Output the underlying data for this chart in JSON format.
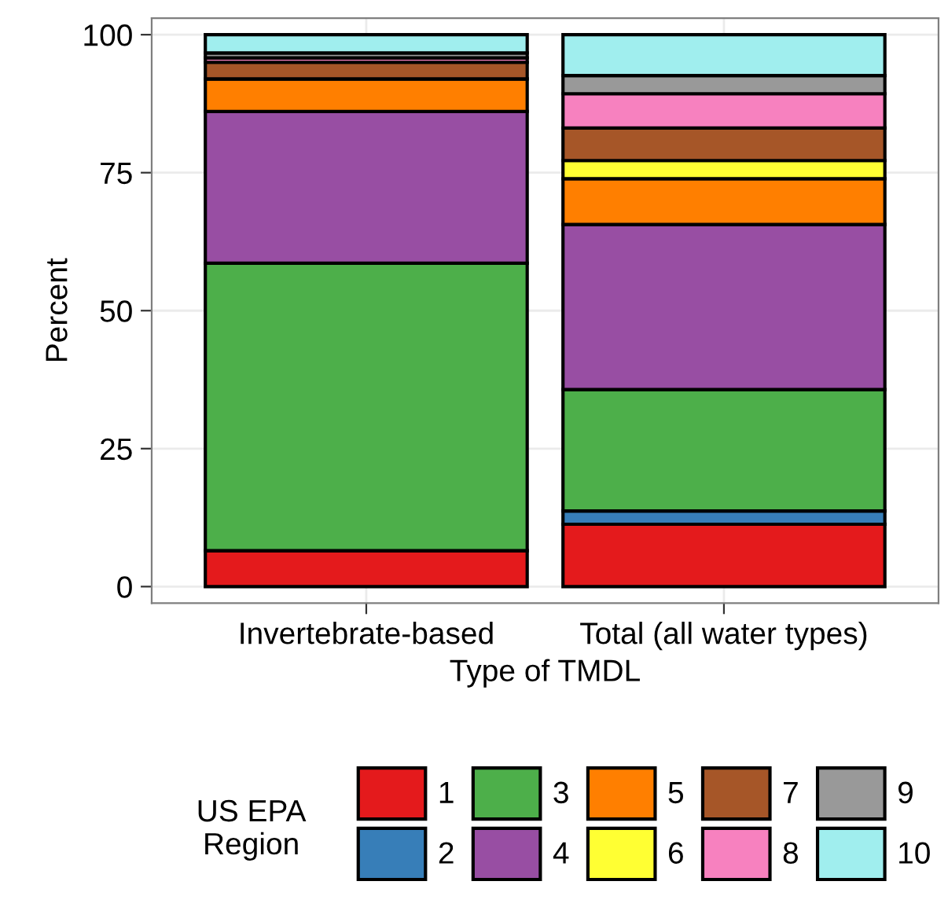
{
  "chart_data": {
    "type": "bar",
    "stacked": true,
    "xlabel": "Type of TMDL",
    "ylabel": "Percent",
    "legend_title": "US EPA\nRegion",
    "categories": [
      "Invertebrate-based",
      "Total (all water types)"
    ],
    "series": [
      {
        "name": "1",
        "color": "#e41a1c",
        "values": [
          6.5,
          11.3
        ]
      },
      {
        "name": "2",
        "color": "#377eb8",
        "values": [
          0,
          2.4
        ]
      },
      {
        "name": "3",
        "color": "#4daf4a",
        "values": [
          52.1,
          22.0
        ]
      },
      {
        "name": "4",
        "color": "#984ea3",
        "values": [
          27.5,
          29.9
        ]
      },
      {
        "name": "5",
        "color": "#ff7f00",
        "values": [
          5.9,
          8.3
        ]
      },
      {
        "name": "6",
        "color": "#ffff33",
        "values": [
          0,
          3.3
        ]
      },
      {
        "name": "7",
        "color": "#a65628",
        "values": [
          3.0,
          5.9
        ]
      },
      {
        "name": "8",
        "color": "#f781bf",
        "values": [
          0.8,
          6.2
        ]
      },
      {
        "name": "9",
        "color": "#999999",
        "values": [
          0.9,
          3.3
        ]
      },
      {
        "name": "10",
        "color": "#a0eeee",
        "values": [
          3.3,
          7.4
        ]
      }
    ],
    "ylim": [
      -3,
      103
    ],
    "yticks": [
      0,
      25,
      50,
      75,
      100
    ],
    "grid": true,
    "legend": "bottom"
  }
}
